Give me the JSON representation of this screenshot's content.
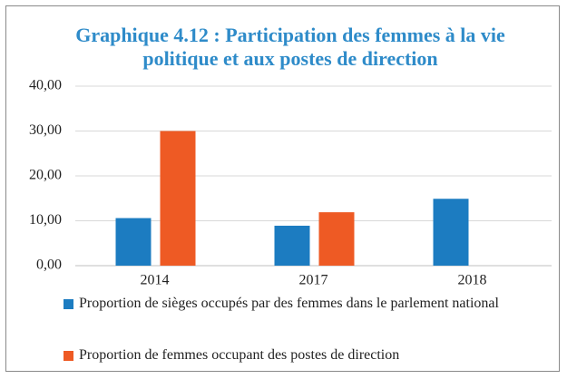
{
  "chart_data": {
    "type": "bar",
    "title": "Graphique 4.12 : Participation des femmes à la vie politique et aux postes de direction",
    "categories": [
      "2014",
      "2017",
      "2018"
    ],
    "series": [
      {
        "name": "Proportion de sièges occupés par des femmes dans le parlement national",
        "color": "#1c7cc1",
        "values": [
          10.6,
          8.9,
          14.9
        ]
      },
      {
        "name": "Proportion de femmes occupant des postes de direction",
        "color": "#ee5a24",
        "values": [
          30.0,
          11.9,
          null
        ]
      }
    ],
    "ylim": [
      0,
      40
    ],
    "yticks": [
      {
        "value": 0,
        "label": "0,00"
      },
      {
        "value": 10,
        "label": "10,00"
      },
      {
        "value": 20,
        "label": "20,00"
      },
      {
        "value": 30,
        "label": "30,00"
      },
      {
        "value": 40,
        "label": "40,00"
      }
    ],
    "grid": true,
    "legend": "bottom"
  }
}
